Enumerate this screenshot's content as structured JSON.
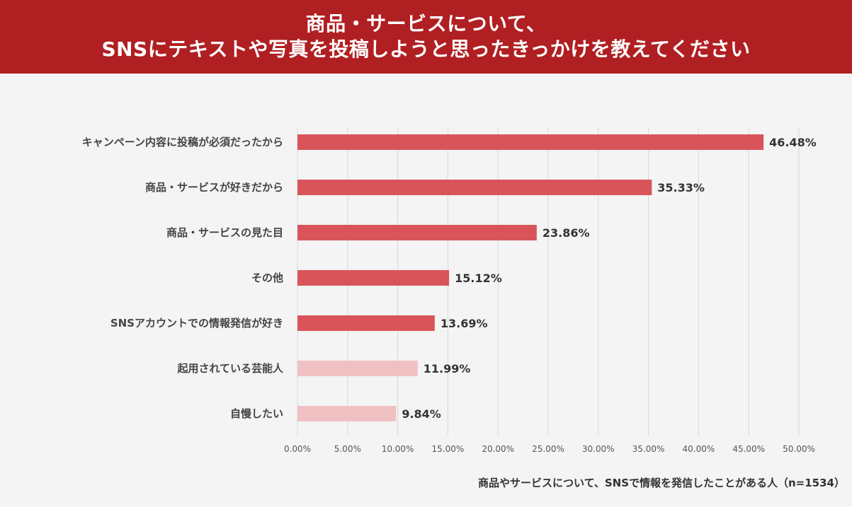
{
  "header": {
    "title_line1": "商品・サービスについて、",
    "title_line2": "SNSにテキストや写真を投稿しようと思ったきっかけを教えてください"
  },
  "footnote": "商品やサービスについて、SNSで情報を発信したことがある人（n=1534）",
  "colors": {
    "header_bg": "#b01f22",
    "bar_primary": "#d9545a",
    "bar_secondary": "#f0c1c3",
    "grid": "#d8d8d8"
  },
  "chart_data": {
    "type": "bar",
    "orientation": "horizontal",
    "categories": [
      "キャンペーン内容に投稿が必須だったから",
      "商品・サービスが好きだから",
      "商品・サービスの見た目",
      "その他",
      "SNSアカウントでの情報発信が好き",
      "起用されている芸能人",
      "自慢したい"
    ],
    "values": [
      46.48,
      35.33,
      23.86,
      15.12,
      13.69,
      11.99,
      9.84
    ],
    "value_labels": [
      "46.48%",
      "35.33%",
      "23.86%",
      "15.12%",
      "13.69%",
      "11.99%",
      "9.84%"
    ],
    "bar_color_keys": [
      "primary",
      "primary",
      "primary",
      "primary",
      "primary",
      "secondary",
      "secondary"
    ],
    "xlim": [
      0,
      50
    ],
    "xticks": [
      0,
      5,
      10,
      15,
      20,
      25,
      30,
      35,
      40,
      45,
      50
    ],
    "xtick_labels": [
      "0.00%",
      "5.00%",
      "10.00%",
      "15.00%",
      "20.00%",
      "25.00%",
      "30.00%",
      "35.00%",
      "40.00%",
      "45.00%",
      "50.00%"
    ],
    "grid": true,
    "xlabel": "",
    "ylabel": ""
  }
}
